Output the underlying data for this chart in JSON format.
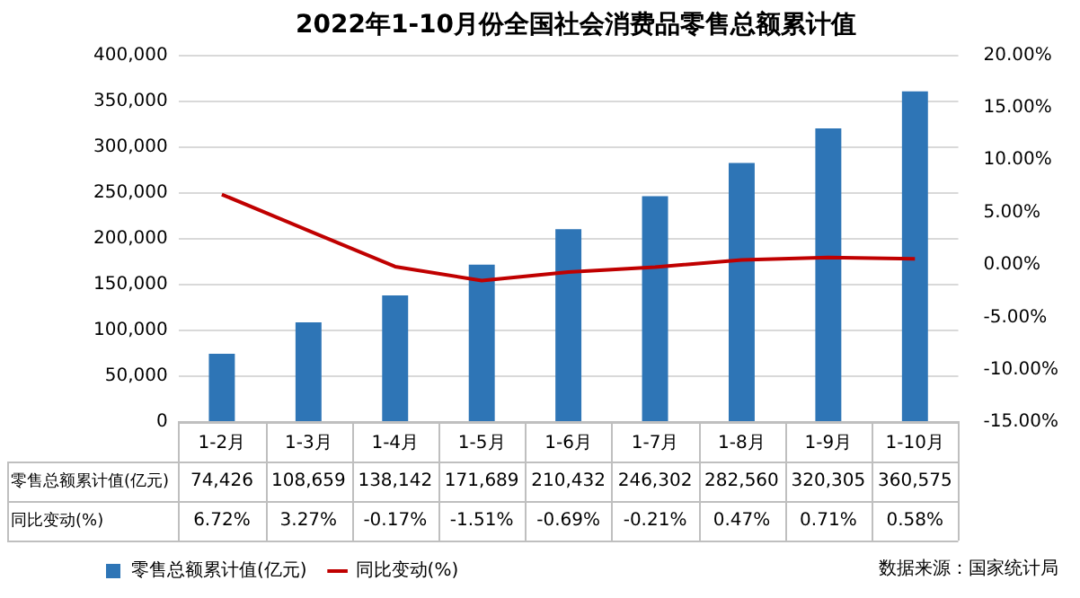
{
  "chart_data": {
    "type": "bar",
    "title": "2022年1-10月份全国社会消费品零售总额累计值",
    "categories": [
      "1-2月",
      "1-3月",
      "1-4月",
      "1-5月",
      "1-6月",
      "1-7月",
      "1-8月",
      "1-9月",
      "1-10月"
    ],
    "series": [
      {
        "name": "零售总额累计值(亿元)",
        "color": "#2e75b6",
        "values": [
          74426,
          108659,
          138142,
          171689,
          210432,
          246302,
          282560,
          320305,
          360575
        ],
        "value_labels": [
          "74,426",
          "108,659",
          "138,142",
          "171,689",
          "210,432",
          "246,302",
          "282,560",
          "320,305",
          "360,575"
        ]
      },
      {
        "name": "同比变动(%)",
        "type": "line",
        "axis": "y2",
        "color": "#c00000",
        "values": [
          6.72,
          3.27,
          -0.17,
          -1.51,
          -0.69,
          -0.21,
          0.47,
          0.71,
          0.58
        ],
        "value_labels": [
          "6.72%",
          "3.27%",
          "-0.17%",
          "-1.51%",
          "-0.69%",
          "-0.21%",
          "0.47%",
          "0.71%",
          "0.58%"
        ]
      }
    ],
    "ylim": [
      0,
      400000
    ],
    "yticks": [
      {
        "value": 0,
        "label": "0"
      },
      {
        "value": 50000,
        "label": "50,000"
      },
      {
        "value": 100000,
        "label": "100,000"
      },
      {
        "value": 150000,
        "label": "150,000"
      },
      {
        "value": 200000,
        "label": "200,000"
      },
      {
        "value": 250000,
        "label": "250,000"
      },
      {
        "value": 300000,
        "label": "300,000"
      },
      {
        "value": 350000,
        "label": "350,000"
      },
      {
        "value": 400000,
        "label": "400,000"
      }
    ],
    "y2lim": [
      -15,
      20
    ],
    "y2ticks": [
      {
        "value": -15,
        "label": "-15.00%"
      },
      {
        "value": -10,
        "label": "-10.00%"
      },
      {
        "value": -5,
        "label": "-5.00%"
      },
      {
        "value": 0,
        "label": "0.00%"
      },
      {
        "value": 5,
        "label": "5.00%"
      },
      {
        "value": 10,
        "label": "10.00%"
      },
      {
        "value": 15,
        "label": "15.00%"
      },
      {
        "value": 20,
        "label": "20.00%"
      }
    ],
    "grid": "y",
    "legend": "bottom left",
    "marker": "none",
    "line_style": "solid",
    "annotations": [
      "数据来源：国家统计局"
    ]
  }
}
